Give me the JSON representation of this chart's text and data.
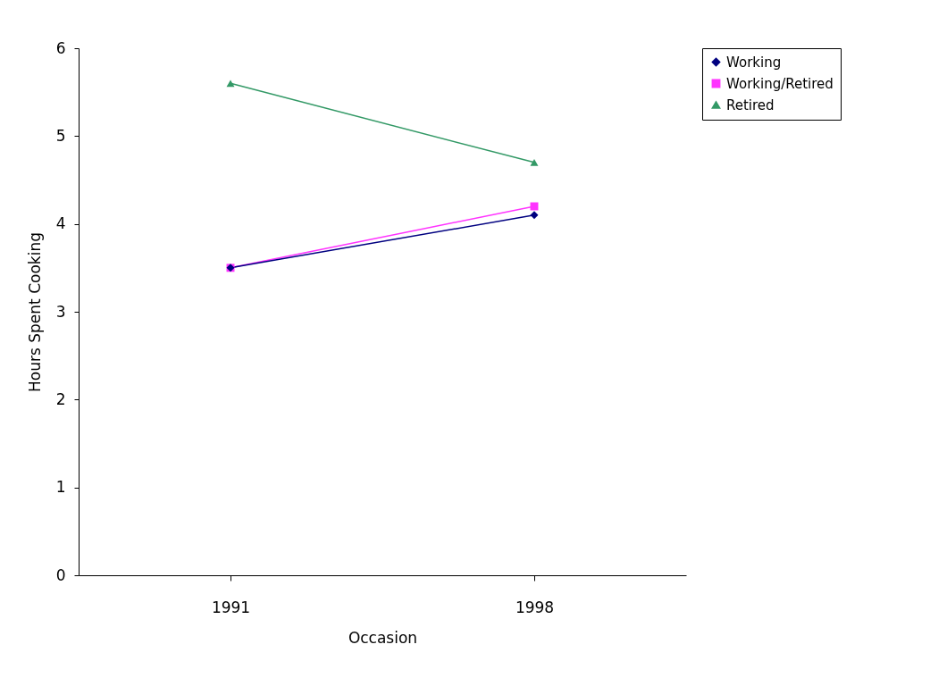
{
  "chart_data": {
    "type": "line",
    "xlabel": "Occasion",
    "ylabel": "Hours Spent Cooking",
    "categories": [
      "1991",
      "1998"
    ],
    "series": [
      {
        "name": "Working",
        "color": "#000080",
        "marker": "diamond",
        "values": [
          3.5,
          4.1
        ]
      },
      {
        "name": "Working/Retired",
        "color": "#ff33ff",
        "marker": "square",
        "values": [
          3.5,
          4.2
        ]
      },
      {
        "name": "Retired",
        "color": "#339966",
        "marker": "triangle",
        "values": [
          5.6,
          4.7
        ]
      }
    ],
    "ylim": [
      0,
      6
    ],
    "yticks": [
      0,
      1,
      2,
      3,
      4,
      5,
      6
    ],
    "grid": false,
    "legend": "right"
  }
}
